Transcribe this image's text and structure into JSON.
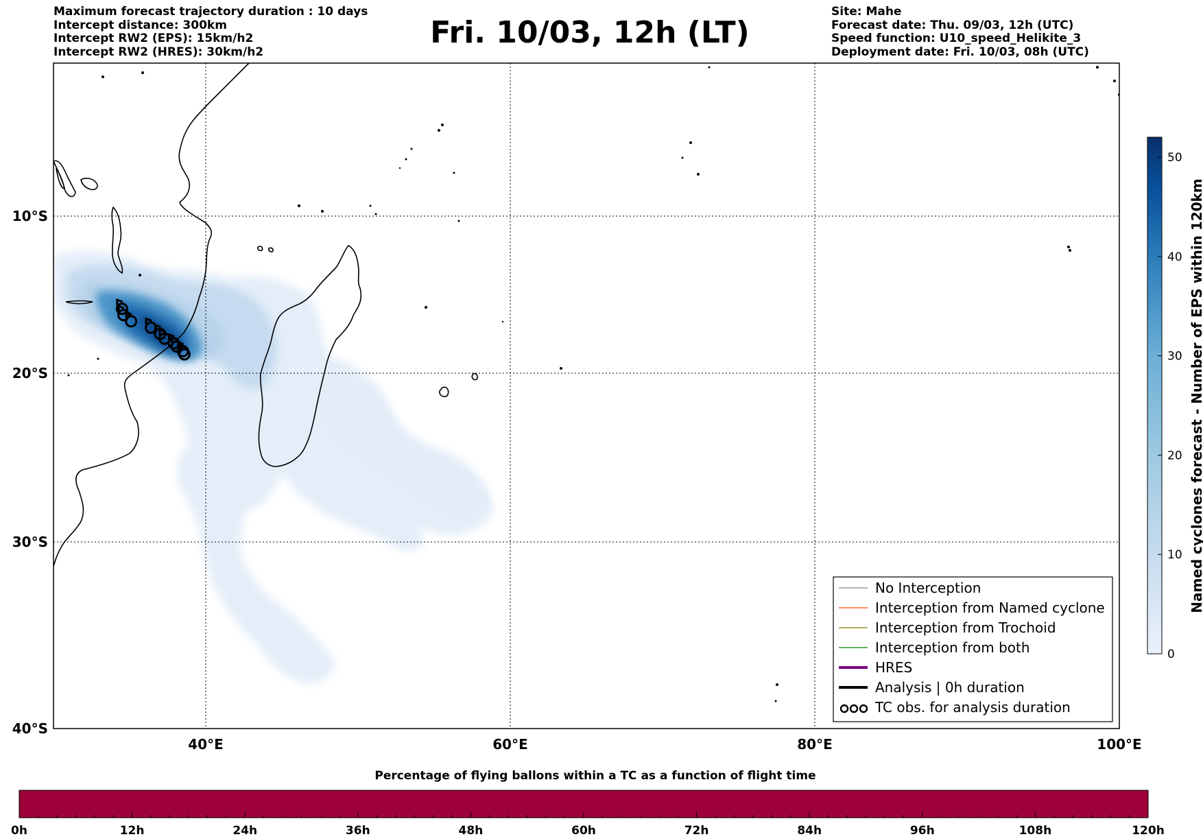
{
  "header": {
    "left": [
      "Maximum forecast trajectory duration : 10 days",
      "Intercept distance: 300km",
      "Intercept RW2 (EPS):  15km/h2",
      "Intercept RW2 (HRES): 30km/h2"
    ],
    "title": "Fri. 10/03, 12h (LT)",
    "right": [
      "Site: Mahe",
      "Forecast date: Thu. 09/03, 12h (UTC)",
      "Speed function: U10_speed_Helikite_3",
      "Deployment date: Fri. 10/03, 08h (UTC)"
    ]
  },
  "map": {
    "lon_range": [
      30,
      100
    ],
    "lat_range": [
      -40,
      0
    ],
    "lat_ticks": [
      {
        "lat": -10,
        "label": "10°S"
      },
      {
        "lat": -20,
        "label": "20°S"
      },
      {
        "lat": -30,
        "label": "30°S"
      },
      {
        "lat": -40,
        "label": "40°S"
      }
    ],
    "lon_ticks": [
      {
        "lon": 40,
        "label": "40°E"
      },
      {
        "lon": 60,
        "label": "60°E"
      },
      {
        "lon": 80,
        "label": "80°E"
      },
      {
        "lon": 100,
        "label": "100°E"
      }
    ],
    "grid": "dotted"
  },
  "colorbar": {
    "label": "Named cyclones forecast - Number of EPS within 120km",
    "ticks": [
      0,
      10,
      20,
      30,
      40,
      50
    ],
    "max": 52,
    "colors": [
      "#e6eff9",
      "#c9dcef",
      "#9ecae1",
      "#6baed6",
      "#3182bd",
      "#08519c",
      "#08306b"
    ]
  },
  "legend": {
    "entries": [
      {
        "label": "No Interception",
        "color": "#808080",
        "style": "thin"
      },
      {
        "label": "Interception from Named cyclone",
        "color": "#ff4500",
        "style": "thin"
      },
      {
        "label": "Interception from Trochoid",
        "color": "#808000",
        "style": "thin"
      },
      {
        "label": "Interception from both",
        "color": "#008000",
        "style": "thin"
      },
      {
        "label": "HRES",
        "color": "#800080",
        "style": "thick"
      },
      {
        "label": "Analysis | 0h duration",
        "color": "#000000",
        "style": "thick"
      },
      {
        "label": "TC obs. for analysis duration",
        "color": "#000000",
        "style": "symbol"
      }
    ]
  },
  "tc_obs": [
    {
      "lon": 34.5,
      "lat": -15.9
    },
    {
      "lon": 34.6,
      "lat": -16.3
    },
    {
      "lon": 35.1,
      "lat": -16.7
    },
    {
      "lon": 36.4,
      "lat": -17.1
    },
    {
      "lon": 37.0,
      "lat": -17.5
    },
    {
      "lon": 37.3,
      "lat": -17.8
    },
    {
      "lon": 37.9,
      "lat": -18.1
    },
    {
      "lon": 38.1,
      "lat": -18.3
    },
    {
      "lon": 38.5,
      "lat": -18.6
    },
    {
      "lon": 38.6,
      "lat": -18.8
    }
  ],
  "bottom_bar": {
    "title": "Percentage of flying ballons within a TC as a function of flight time",
    "color": "#9e003a",
    "ticks": [
      "0h",
      "12h",
      "24h",
      "36h",
      "48h",
      "60h",
      "72h",
      "84h",
      "96h",
      "108h",
      "120h"
    ]
  }
}
